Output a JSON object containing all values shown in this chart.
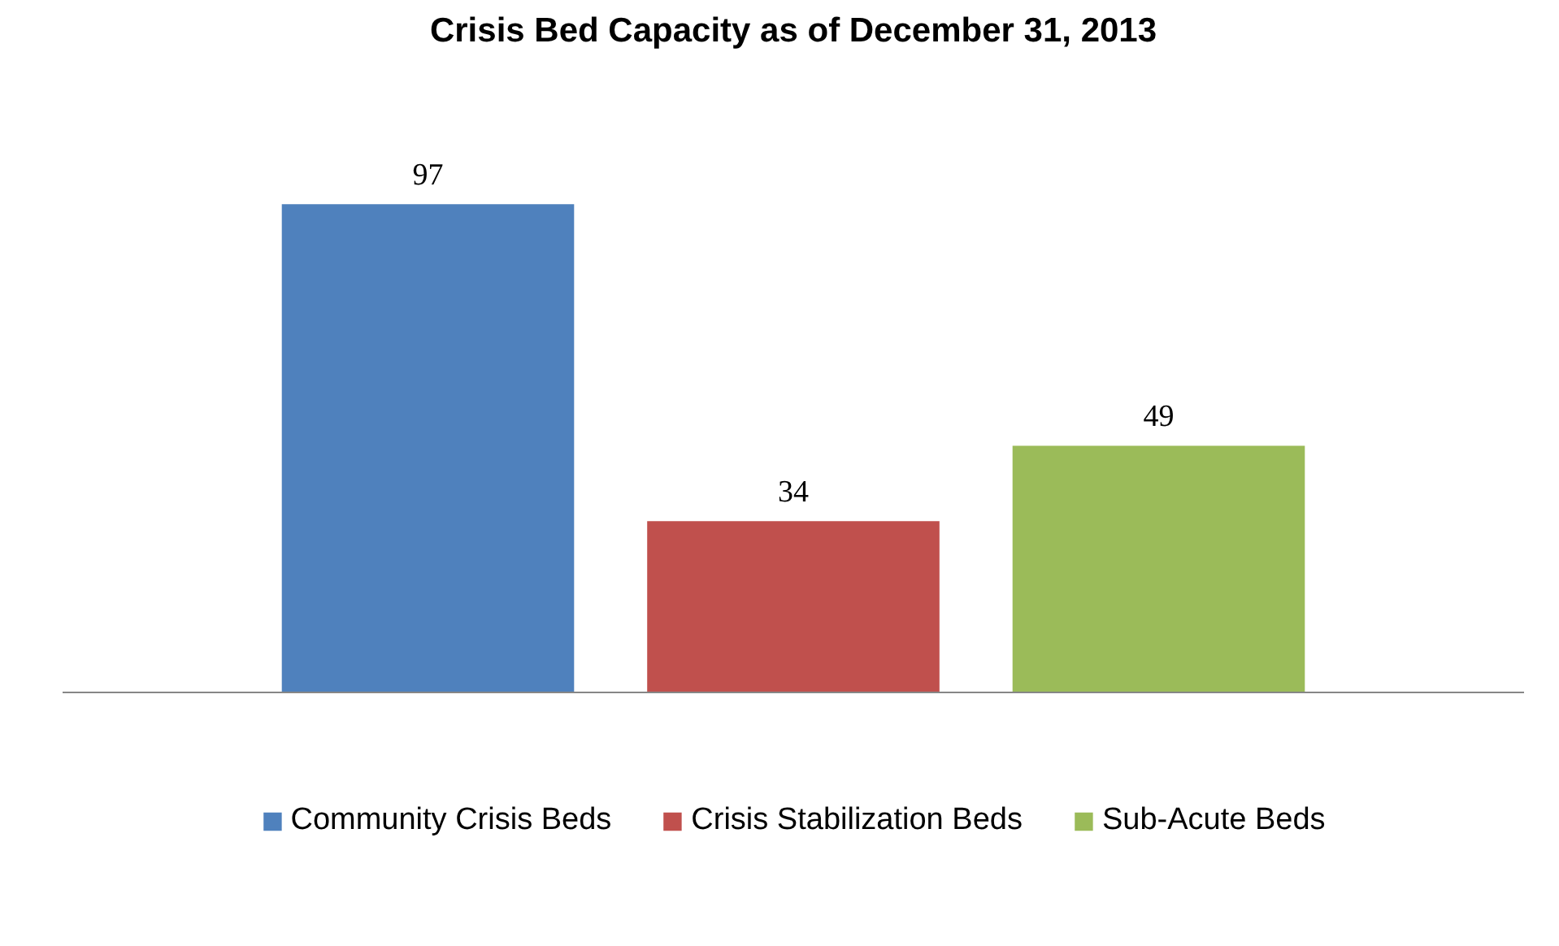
{
  "chart_data": {
    "type": "bar",
    "title": "Crisis Bed Capacity as of December 31, 2013",
    "categories": [
      null
    ],
    "series": [
      {
        "name": "Community Crisis Beds",
        "color": "#4f81bd",
        "values": [
          97
        ]
      },
      {
        "name": "Crisis Stabilization Beds",
        "color": "#c0504d",
        "values": [
          34
        ]
      },
      {
        "name": "Sub-Acute Beds",
        "color": "#9bbb59",
        "values": [
          49
        ]
      }
    ],
    "data_labels": true,
    "legend": "bottom"
  }
}
